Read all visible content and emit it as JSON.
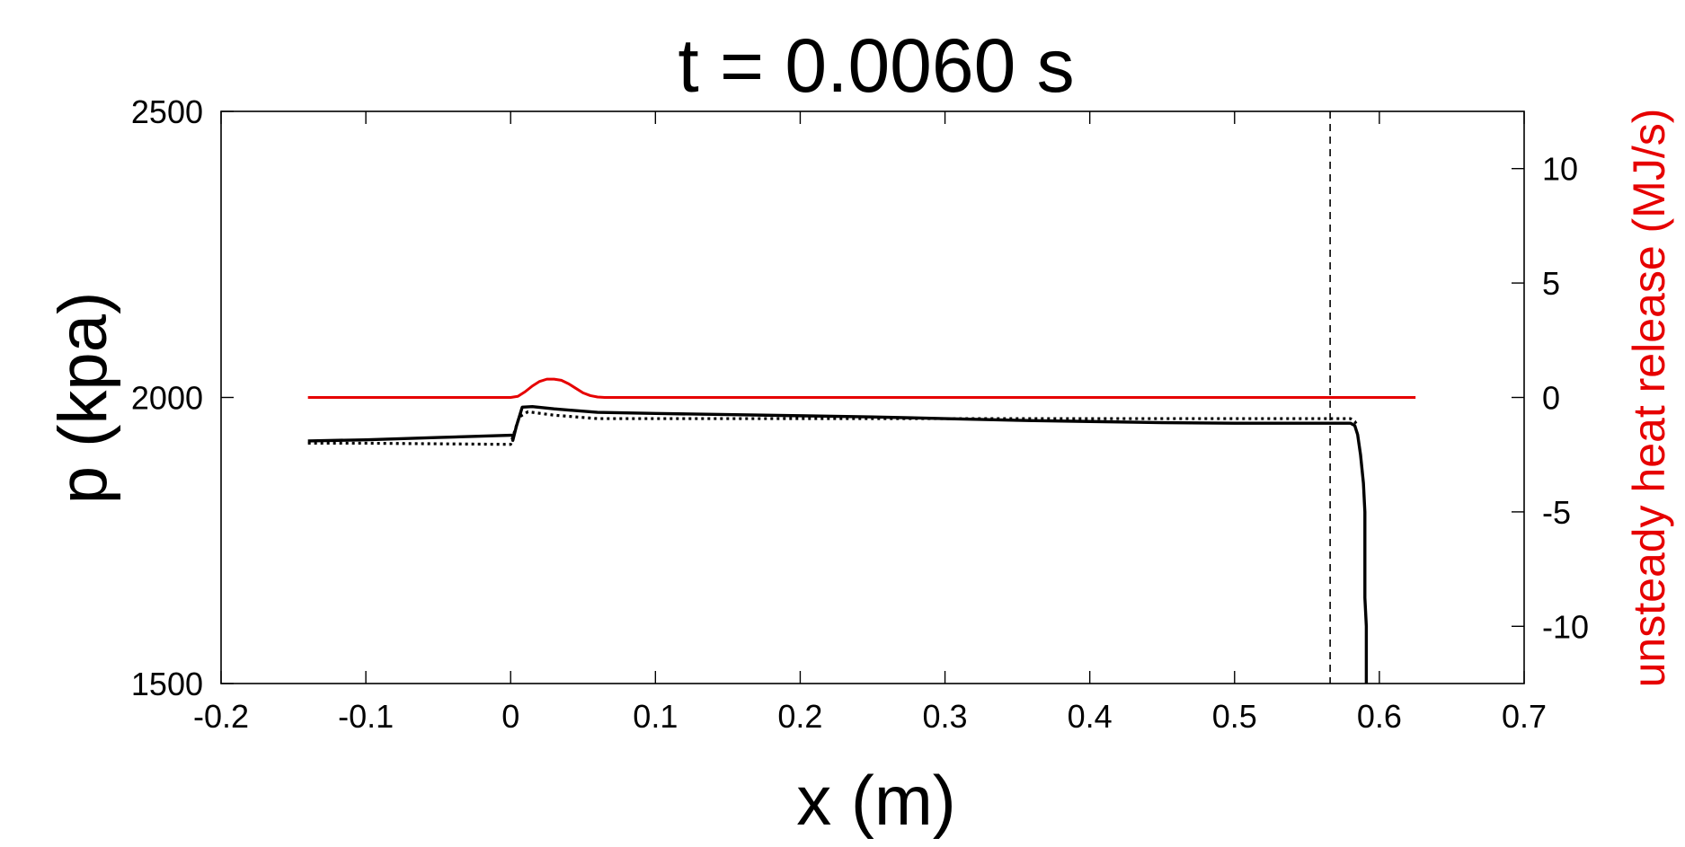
{
  "chart_data": {
    "type": "line",
    "title": "t = 0.0060 s",
    "xlabel": "x (m)",
    "ylabel": "p (kpa)",
    "y2label": "unsteady heat release (MJ/s)",
    "xlim": [
      -0.2,
      0.7
    ],
    "ylim": [
      1500,
      2500
    ],
    "y2lim": [
      -12.5,
      12.5
    ],
    "xticks": [
      -0.2,
      -0.1,
      0,
      0.1,
      0.2,
      0.3,
      0.4,
      0.5,
      0.6,
      0.7
    ],
    "xtick_labels": [
      "-0.2",
      "-0.1",
      "0",
      "0.1",
      "0.2",
      "0.3",
      "0.4",
      "0.5",
      "0.6",
      "0.7"
    ],
    "yticks": [
      1500,
      2000,
      2500
    ],
    "ytick_labels": [
      "1500",
      "2000",
      "2500"
    ],
    "y2ticks": [
      -10,
      -5,
      0,
      5,
      10
    ],
    "y2tick_labels": [
      "-10",
      "-5",
      "0",
      "5",
      "10"
    ],
    "grid": false,
    "colors": {
      "pressure": "#000000",
      "heat_release": "#e60000",
      "axis": "#000000"
    },
    "series": [
      {
        "style": "solid",
        "axis": "left",
        "color": "#000000",
        "x": [
          -0.14,
          -0.1,
          -0.05,
          0.0,
          0.0015,
          0.0015,
          0.004,
          0.008,
          0.015,
          0.03,
          0.06,
          0.1,
          0.15,
          0.2,
          0.25,
          0.3,
          0.35,
          0.4,
          0.45,
          0.5,
          0.55,
          0.58,
          0.583,
          0.585,
          0.587,
          0.589,
          0.59,
          0.59,
          0.591,
          0.591
        ],
        "y": [
          1924,
          1926,
          1930,
          1934,
          1934,
          1925,
          1950,
          1983,
          1984,
          1980,
          1974,
          1972,
          1970,
          1968,
          1966,
          1963,
          1960,
          1958,
          1956,
          1955,
          1955,
          1955,
          1951,
          1935,
          1900,
          1850,
          1800,
          1650,
          1600,
          1500
        ]
      },
      {
        "style": "dotted",
        "axis": "left",
        "color": "#000000",
        "x": [
          -0.14,
          -0.1,
          -0.05,
          -0.002,
          0.0,
          0.002,
          0.006,
          0.012,
          0.03,
          0.06,
          0.1,
          0.2,
          0.3,
          0.4,
          0.5,
          0.58,
          0.583,
          0.585
        ],
        "y": [
          1920,
          1920,
          1919,
          1918,
          1918,
          1935,
          1966,
          1975,
          1969,
          1963,
          1963,
          1963,
          1963,
          1963,
          1963,
          1963,
          1958,
          1950
        ]
      },
      {
        "style": "solid",
        "axis": "right",
        "color": "#e60000",
        "x": [
          -0.14,
          -0.1,
          -0.05,
          0.0,
          0.005,
          0.01,
          0.015,
          0.02,
          0.025,
          0.03,
          0.035,
          0.04,
          0.045,
          0.05,
          0.055,
          0.06,
          0.065,
          0.07,
          0.1,
          0.2,
          0.3,
          0.4,
          0.5,
          0.6,
          0.625
        ],
        "y": [
          0,
          0,
          0,
          0,
          0.05,
          0.25,
          0.5,
          0.7,
          0.8,
          0.8,
          0.75,
          0.6,
          0.4,
          0.2,
          0.08,
          0.02,
          0,
          0,
          0,
          0,
          0,
          0,
          0,
          0,
          0
        ]
      }
    ],
    "annotations": [
      {
        "type": "vertical-dashed-line",
        "x": 0.566
      }
    ]
  }
}
